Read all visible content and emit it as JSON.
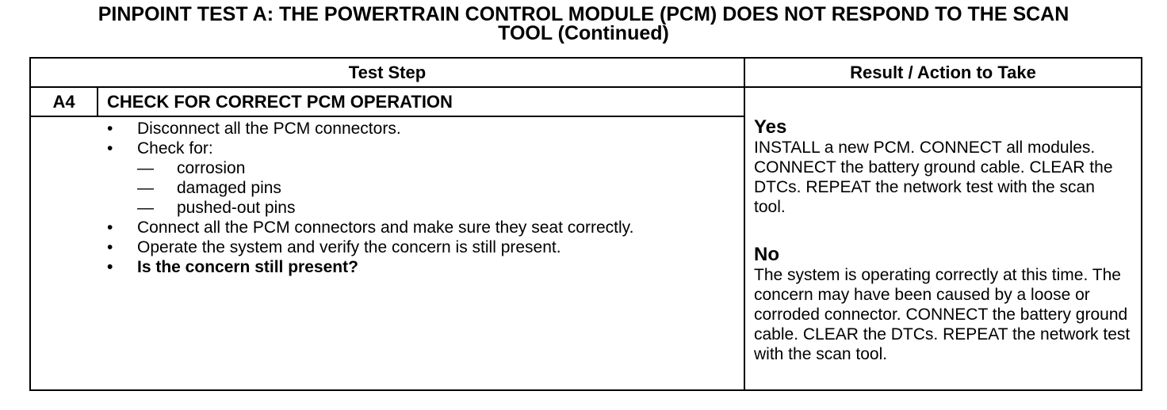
{
  "title_line1": "PINPOINT TEST A: THE POWERTRAIN CONTROL MODULE (PCM) DOES NOT RESPOND TO THE SCAN",
  "title_line2": "TOOL (Continued)",
  "table": {
    "col_test_step": "Test Step",
    "col_result": "Result / Action to Take",
    "step_id": "A4",
    "step_title": "CHECK FOR CORRECT PCM OPERATION",
    "bullets": [
      "Disconnect all the PCM connectors.",
      "Check for:",
      "Connect all the PCM connectors and make sure they seat correctly.",
      "Operate the system and verify the concern is still present.",
      "Is the concern still present?"
    ],
    "check_items": [
      "corrosion",
      "damaged pins",
      "pushed-out pins"
    ],
    "bullet_char": "•",
    "dash_char": "—",
    "yes_label": "Yes",
    "yes_text": "INSTALL a new PCM. CONNECT all modules. CONNECT the battery ground cable. CLEAR the DTCs. REPEAT the network test with the scan tool.",
    "no_label": "No",
    "no_text": "The system is operating correctly at this time. The concern may have been caused by a loose or corroded connector. CONNECT the battery ground cable. CLEAR the DTCs. REPEAT the network test with the scan tool."
  }
}
